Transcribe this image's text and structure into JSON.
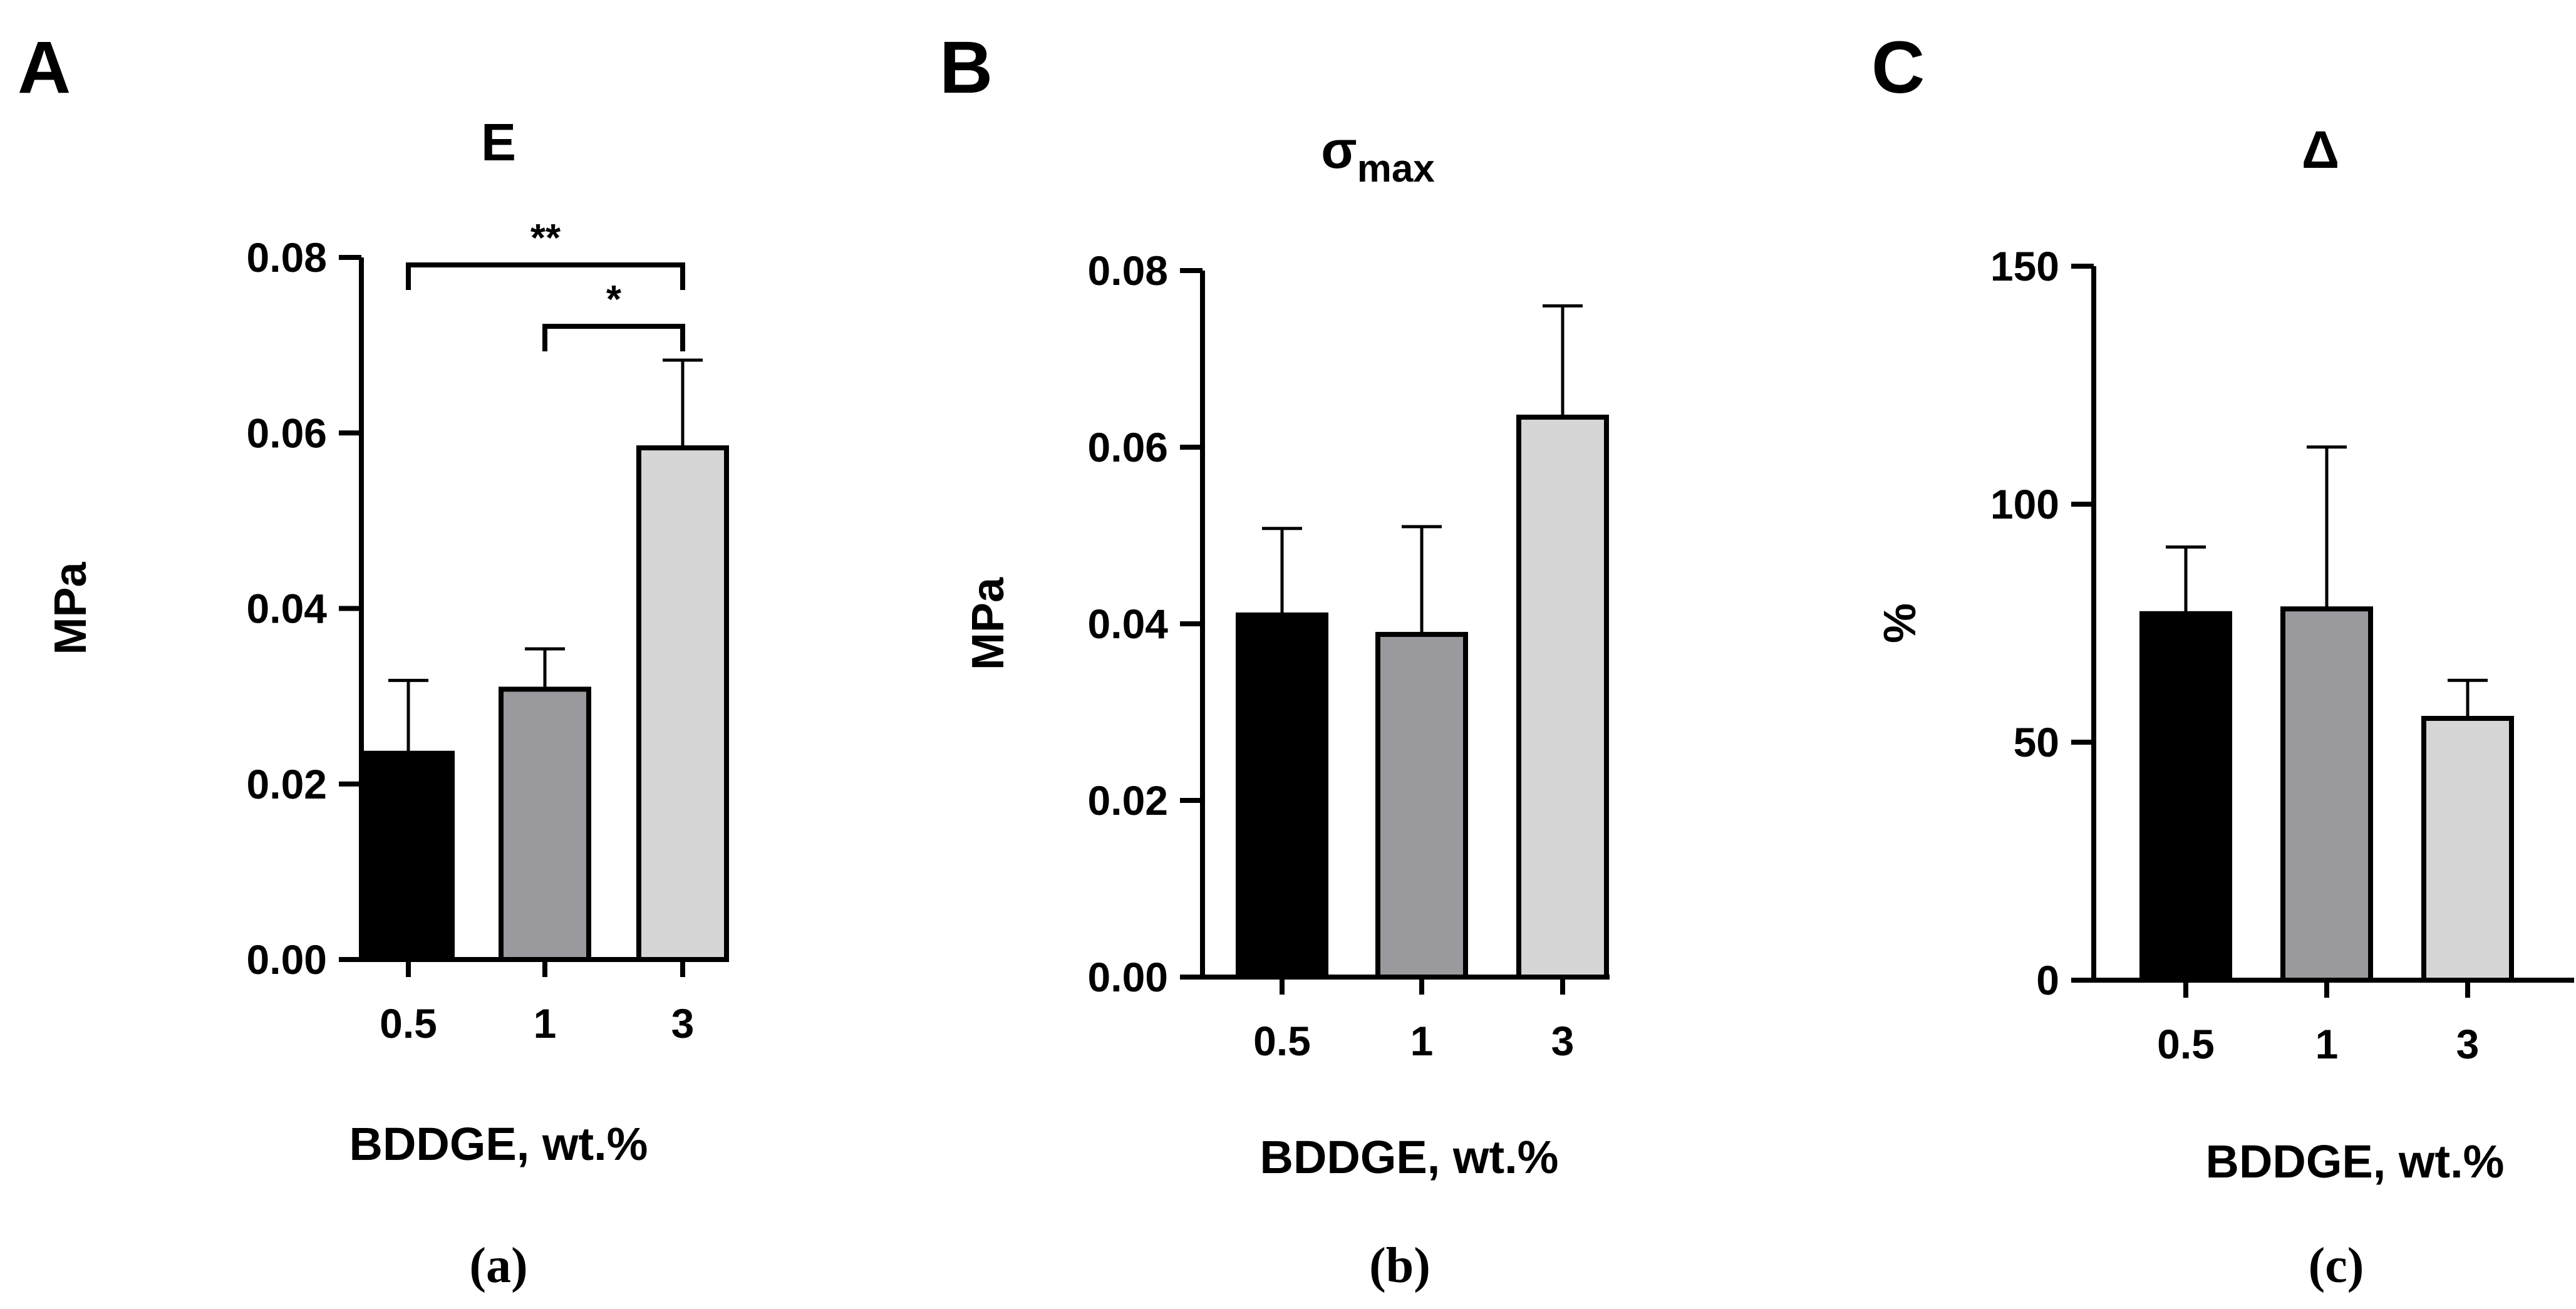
{
  "colors": {
    "bar_05": "#000000",
    "bar_1": "#9a999e",
    "bar_3": "#d6d6d6",
    "axis": "#000000"
  },
  "chart_data": [
    {
      "type": "bar",
      "panel_letter": "A",
      "title": "E",
      "title_sub": "",
      "ylabel": "MPa",
      "xlabel": "BDDGE, wt.%",
      "caption": "(a)",
      "categories": [
        "0.5",
        "1",
        "3"
      ],
      "values": [
        0.0235,
        0.0308,
        0.0583
      ],
      "errors": [
        0.0083,
        0.0046,
        0.01
      ],
      "ylim": [
        0,
        0.08
      ],
      "yticks": [
        0.0,
        0.02,
        0.04,
        0.06,
        0.08
      ],
      "ytick_labels": [
        "0.00",
        "0.02",
        "0.04",
        "0.06",
        "0.08"
      ],
      "significance": [
        {
          "from": 0,
          "to": 2,
          "label": "**"
        },
        {
          "from": 1,
          "to": 2,
          "label": "*"
        }
      ]
    },
    {
      "type": "bar",
      "panel_letter": "B",
      "title": "σ",
      "title_sub": "max",
      "ylabel": "MPa",
      "xlabel": "BDDGE, wt.%",
      "caption": "(b)",
      "categories": [
        "0.5",
        "1",
        "3"
      ],
      "values": [
        0.041,
        0.0388,
        0.0634
      ],
      "errors": [
        0.0098,
        0.0122,
        0.0126
      ],
      "ylim": [
        0,
        0.08
      ],
      "yticks": [
        0.0,
        0.02,
        0.04,
        0.06,
        0.08
      ],
      "ytick_labels": [
        "0.00",
        "0.02",
        "0.04",
        "0.06",
        "0.08"
      ],
      "significance": []
    },
    {
      "type": "bar",
      "panel_letter": "C",
      "title": "Δ",
      "title_sub": "",
      "ylabel": "%",
      "xlabel": "BDDGE, wt.%",
      "caption": "(c)",
      "categories": [
        "0.5",
        "1",
        "3"
      ],
      "values": [
        77,
        78,
        55
      ],
      "errors": [
        14,
        34,
        8
      ],
      "ylim": [
        0,
        150
      ],
      "yticks": [
        0,
        50,
        100,
        150
      ],
      "ytick_labels": [
        "0",
        "50",
        "100",
        "150"
      ],
      "significance": []
    }
  ]
}
